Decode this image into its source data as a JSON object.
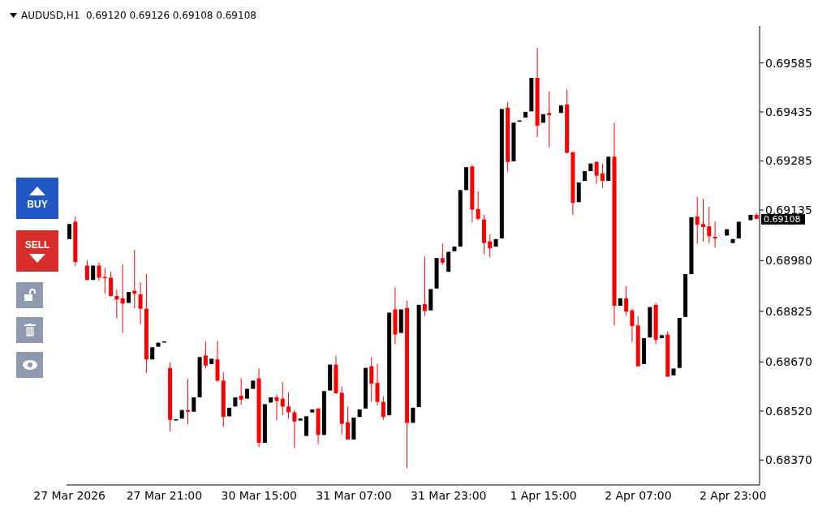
{
  "chart_data": {
    "type": "candlestick",
    "title": "AUDUSD,H1  0.69120 0.69126 0.69108 0.69108",
    "categories": [
      "27 Mar 2026",
      null,
      null,
      null,
      null,
      null,
      null,
      null,
      null,
      null,
      null,
      null,
      null,
      null,
      null,
      null,
      "27 Mar 21:00",
      null,
      null,
      null,
      null,
      null,
      null,
      null,
      null,
      null,
      null,
      null,
      null,
      null,
      null,
      null,
      "30 Mar 15:00",
      null,
      null,
      null,
      null,
      null,
      null,
      null,
      null,
      null,
      null,
      null,
      null,
      null,
      null,
      null,
      "31 Mar 07:00",
      null,
      null,
      null,
      null,
      null,
      null,
      null,
      null,
      null,
      null,
      null,
      null,
      null,
      null,
      null,
      "31 Mar 23:00",
      null,
      null,
      null,
      null,
      null,
      null,
      null,
      null,
      null,
      null,
      null,
      null,
      null,
      null,
      null,
      "1 Apr 15:00",
      null,
      null,
      null,
      null,
      null,
      null,
      null,
      null,
      null,
      null,
      null,
      null,
      null,
      null,
      null,
      "2 Apr 07:00",
      null,
      null,
      null,
      null,
      null,
      null,
      null,
      null,
      null,
      null,
      null,
      null,
      null,
      null,
      null,
      "2 Apr 23:00",
      null,
      null,
      null,
      null
    ],
    "ohlc": [
      [
        0.69046,
        0.69092,
        0.69046,
        0.69092
      ],
      [
        0.69099,
        0.69115,
        0.68963,
        0.68976
      ],
      null,
      [
        0.68965,
        0.68981,
        0.68921,
        0.68921
      ],
      [
        0.68921,
        0.68965,
        0.68921,
        0.68965
      ],
      [
        0.68965,
        0.68974,
        0.68919,
        0.68928
      ],
      [
        0.6893,
        0.68958,
        0.68879,
        0.68928
      ],
      [
        0.68928,
        0.68946,
        0.6887,
        0.68872
      ],
      [
        0.68872,
        0.68891,
        0.68803,
        0.68861
      ],
      [
        0.68865,
        0.68969,
        0.68759,
        0.68849
      ],
      [
        0.68851,
        0.68884,
        0.68851,
        0.68884
      ],
      [
        0.68888,
        0.69013,
        0.68835,
        0.68879
      ],
      [
        0.68877,
        0.68914,
        0.68784,
        0.68833
      ],
      [
        0.68833,
        0.68939,
        0.68636,
        0.68678
      ],
      [
        0.68678,
        0.68715,
        0.68678,
        0.68715
      ],
      [
        0.68717,
        0.68729,
        0.68717,
        0.68729
      ],
      [
        0.68731,
        0.68733,
        0.68731,
        0.68733
      ],
      [
        0.68652,
        0.68669,
        0.68458,
        0.68493
      ],
      [
        0.68493,
        0.68495,
        0.68493,
        0.68495
      ],
      [
        0.68497,
        0.68523,
        0.68497,
        0.68523
      ],
      [
        0.68523,
        0.68618,
        0.68479,
        0.68518
      ],
      [
        0.68518,
        0.68562,
        0.68518,
        0.68562
      ],
      [
        0.68562,
        0.68685,
        0.68562,
        0.68685
      ],
      [
        0.6869,
        0.68733,
        0.6865,
        0.68659
      ],
      [
        0.68664,
        0.6868,
        0.68664,
        0.6868
      ],
      [
        0.68678,
        0.68736,
        0.68609,
        0.68613
      ],
      [
        0.68613,
        0.68639,
        0.68472,
        0.68502
      ],
      [
        0.68504,
        0.6853,
        0.68504,
        0.6853
      ],
      [
        0.68534,
        0.68562,
        0.68534,
        0.68562
      ],
      [
        0.68567,
        0.6862,
        0.68539,
        0.68555
      ],
      [
        0.68558,
        0.68588,
        0.68558,
        0.68588
      ],
      [
        0.68588,
        0.68613,
        0.68588,
        0.68613
      ],
      [
        0.6862,
        0.6865,
        0.6841,
        0.68423
      ],
      [
        0.68423,
        0.68541,
        0.68423,
        0.68541
      ],
      [
        0.68546,
        0.68562,
        0.68546,
        0.68562
      ],
      [
        0.68562,
        0.68571,
        0.68491,
        0.68551
      ],
      [
        0.68558,
        0.68609,
        0.68507,
        0.68534
      ],
      [
        0.68534,
        0.68578,
        0.68497,
        0.68516
      ],
      [
        0.68516,
        0.68523,
        0.68407,
        0.68488
      ],
      [
        0.68491,
        0.68497,
        0.68491,
        0.68497
      ],
      [
        0.68444,
        0.68504,
        0.68444,
        0.68504
      ],
      [
        0.68516,
        0.68525,
        0.68516,
        0.68525
      ],
      [
        0.68528,
        0.68528,
        0.68419,
        0.68447
      ],
      [
        0.68447,
        0.68581,
        0.68447,
        0.68581
      ],
      [
        0.68583,
        0.68662,
        0.68583,
        0.68662
      ],
      [
        0.68662,
        0.6869,
        0.68574,
        0.68574
      ],
      [
        0.68576,
        0.68595,
        0.68449,
        0.68481
      ],
      [
        0.68486,
        0.68534,
        0.68433,
        0.68433
      ],
      [
        0.68433,
        0.685,
        0.68433,
        0.685
      ],
      [
        0.68502,
        0.68525,
        0.68502,
        0.68525
      ],
      [
        0.68528,
        0.68652,
        0.68528,
        0.68652
      ],
      [
        0.68657,
        0.68685,
        0.68548,
        0.68604
      ],
      [
        0.68606,
        0.68664,
        0.68537,
        0.68548
      ],
      [
        0.68548,
        0.68565,
        0.68493,
        0.68502
      ],
      [
        0.68507,
        0.68821,
        0.68507,
        0.68821
      ],
      [
        0.68831,
        0.68898,
        0.68724,
        0.68754
      ],
      [
        0.68759,
        0.68831,
        0.68759,
        0.68831
      ],
      [
        0.68835,
        0.68858,
        0.68345,
        0.68484
      ],
      [
        0.68484,
        0.6853,
        0.68484,
        0.6853
      ],
      [
        0.68532,
        0.68845,
        0.68532,
        0.68845
      ],
      [
        0.68847,
        0.68993,
        0.68812,
        0.68826
      ],
      [
        0.68828,
        0.68893,
        0.68828,
        0.68893
      ],
      [
        0.68895,
        0.68988,
        0.68895,
        0.68988
      ],
      [
        0.68988,
        0.69032,
        0.68967,
        0.68974
      ],
      [
        0.68946,
        0.69007,
        0.68946,
        0.69007
      ],
      [
        0.69009,
        0.69023,
        0.69009,
        0.69023
      ],
      [
        0.69023,
        0.69196,
        0.69023,
        0.69196
      ],
      [
        0.69196,
        0.69266,
        0.69196,
        0.69266
      ],
      [
        0.69268,
        0.69273,
        0.69097,
        0.69136
      ],
      [
        0.69138,
        0.69192,
        0.69104,
        0.69108
      ],
      [
        0.69106,
        0.6912,
        0.69,
        0.69034
      ],
      [
        0.69039,
        0.6906,
        0.6899,
        0.69018
      ],
      [
        0.69023,
        0.69046,
        0.69023,
        0.69046
      ],
      [
        0.69048,
        0.69444,
        0.69048,
        0.69444
      ],
      [
        0.69448,
        0.69465,
        0.69252,
        0.69282
      ],
      [
        0.69284,
        0.69402,
        0.69284,
        0.69402
      ],
      [
        0.69407,
        0.69409,
        0.69407,
        0.69409
      ],
      [
        0.69418,
        0.69435,
        0.69418,
        0.69435
      ],
      [
        0.69437,
        0.69539,
        0.69437,
        0.69539
      ],
      [
        0.69539,
        0.69631,
        0.69358,
        0.69393
      ],
      [
        0.69402,
        0.69428,
        0.69402,
        0.69428
      ],
      [
        0.69432,
        0.69497,
        0.69326,
        0.69425
      ],
      null,
      [
        0.69432,
        0.69455,
        0.69432,
        0.69455
      ],
      [
        0.69458,
        0.69504,
        0.69307,
        0.6931
      ],
      [
        0.69312,
        0.69312,
        0.6912,
        0.69157
      ],
      [
        0.69159,
        0.69219,
        0.69159,
        0.69219
      ],
      [
        0.69224,
        0.69254,
        0.69224,
        0.69254
      ],
      [
        0.69254,
        0.69277,
        0.69254,
        0.69277
      ],
      [
        0.69282,
        0.69284,
        0.69215,
        0.6924
      ],
      [
        0.69247,
        0.69277,
        0.69203,
        0.69224
      ],
      [
        0.69224,
        0.69298,
        0.69224,
        0.69298
      ],
      [
        0.69298,
        0.69402,
        0.68782,
        0.68842
      ],
      [
        0.68842,
        0.68865,
        0.68842,
        0.68865
      ],
      [
        0.68865,
        0.68902,
        0.68812,
        0.68824
      ],
      [
        0.68828,
        0.68833,
        0.68731,
        0.6878
      ],
      [
        0.68782,
        0.6881,
        0.68655,
        0.68657
      ],
      [
        0.68664,
        0.68743,
        0.68664,
        0.68743
      ],
      [
        0.68745,
        0.68838,
        0.68745,
        0.68838
      ],
      [
        0.68845,
        0.68851,
        0.68724,
        0.68738
      ],
      [
        0.68743,
        0.68752,
        0.68743,
        0.68752
      ],
      [
        0.68754,
        0.68764,
        0.68625,
        0.68625
      ],
      [
        0.68629,
        0.6865,
        0.68629,
        0.6865
      ],
      [
        0.68652,
        0.68805,
        0.68652,
        0.68805
      ],
      [
        0.68808,
        0.68939,
        0.68808,
        0.68939
      ],
      [
        0.68939,
        0.69113,
        0.68939,
        0.69113
      ],
      [
        0.69115,
        0.69175,
        0.69032,
        0.6909
      ],
      [
        0.69092,
        0.69169,
        0.69039,
        0.69083
      ],
      [
        0.69085,
        0.69145,
        0.69032,
        0.69055
      ],
      [
        0.69053,
        0.69099,
        0.6902,
        0.69048
      ],
      null,
      [
        0.69057,
        0.69076,
        0.69057,
        0.69076
      ],
      [
        0.69034,
        0.69046,
        0.69034,
        0.69046
      ],
      [
        0.69048,
        0.69099,
        0.69048,
        0.69099
      ],
      null,
      [
        0.69104,
        0.6912,
        0.69104,
        0.6912
      ],
      [
        0.6912,
        0.69126,
        0.69108,
        0.69108
      ]
    ],
    "ylim": [
      0.68294,
      0.69698
    ],
    "yticks": [
      {
        "value": 0.6837,
        "label": "0.68370"
      },
      {
        "value": 0.6852,
        "label": "0.68520"
      },
      {
        "value": 0.6867,
        "label": "0.68670"
      },
      {
        "value": 0.68825,
        "label": "0.68825"
      },
      {
        "value": 0.6898,
        "label": "0.68980"
      },
      {
        "value": 0.69135,
        "label": "0.69135"
      },
      {
        "value": 0.69285,
        "label": "0.69285"
      },
      {
        "value": 0.69435,
        "label": "0.69435"
      },
      {
        "value": 0.69585,
        "label": "0.69585"
      }
    ],
    "annotations": [
      "BUY",
      "SELL",
      "0.69108"
    ],
    "grid": false,
    "legend": false
  }
}
